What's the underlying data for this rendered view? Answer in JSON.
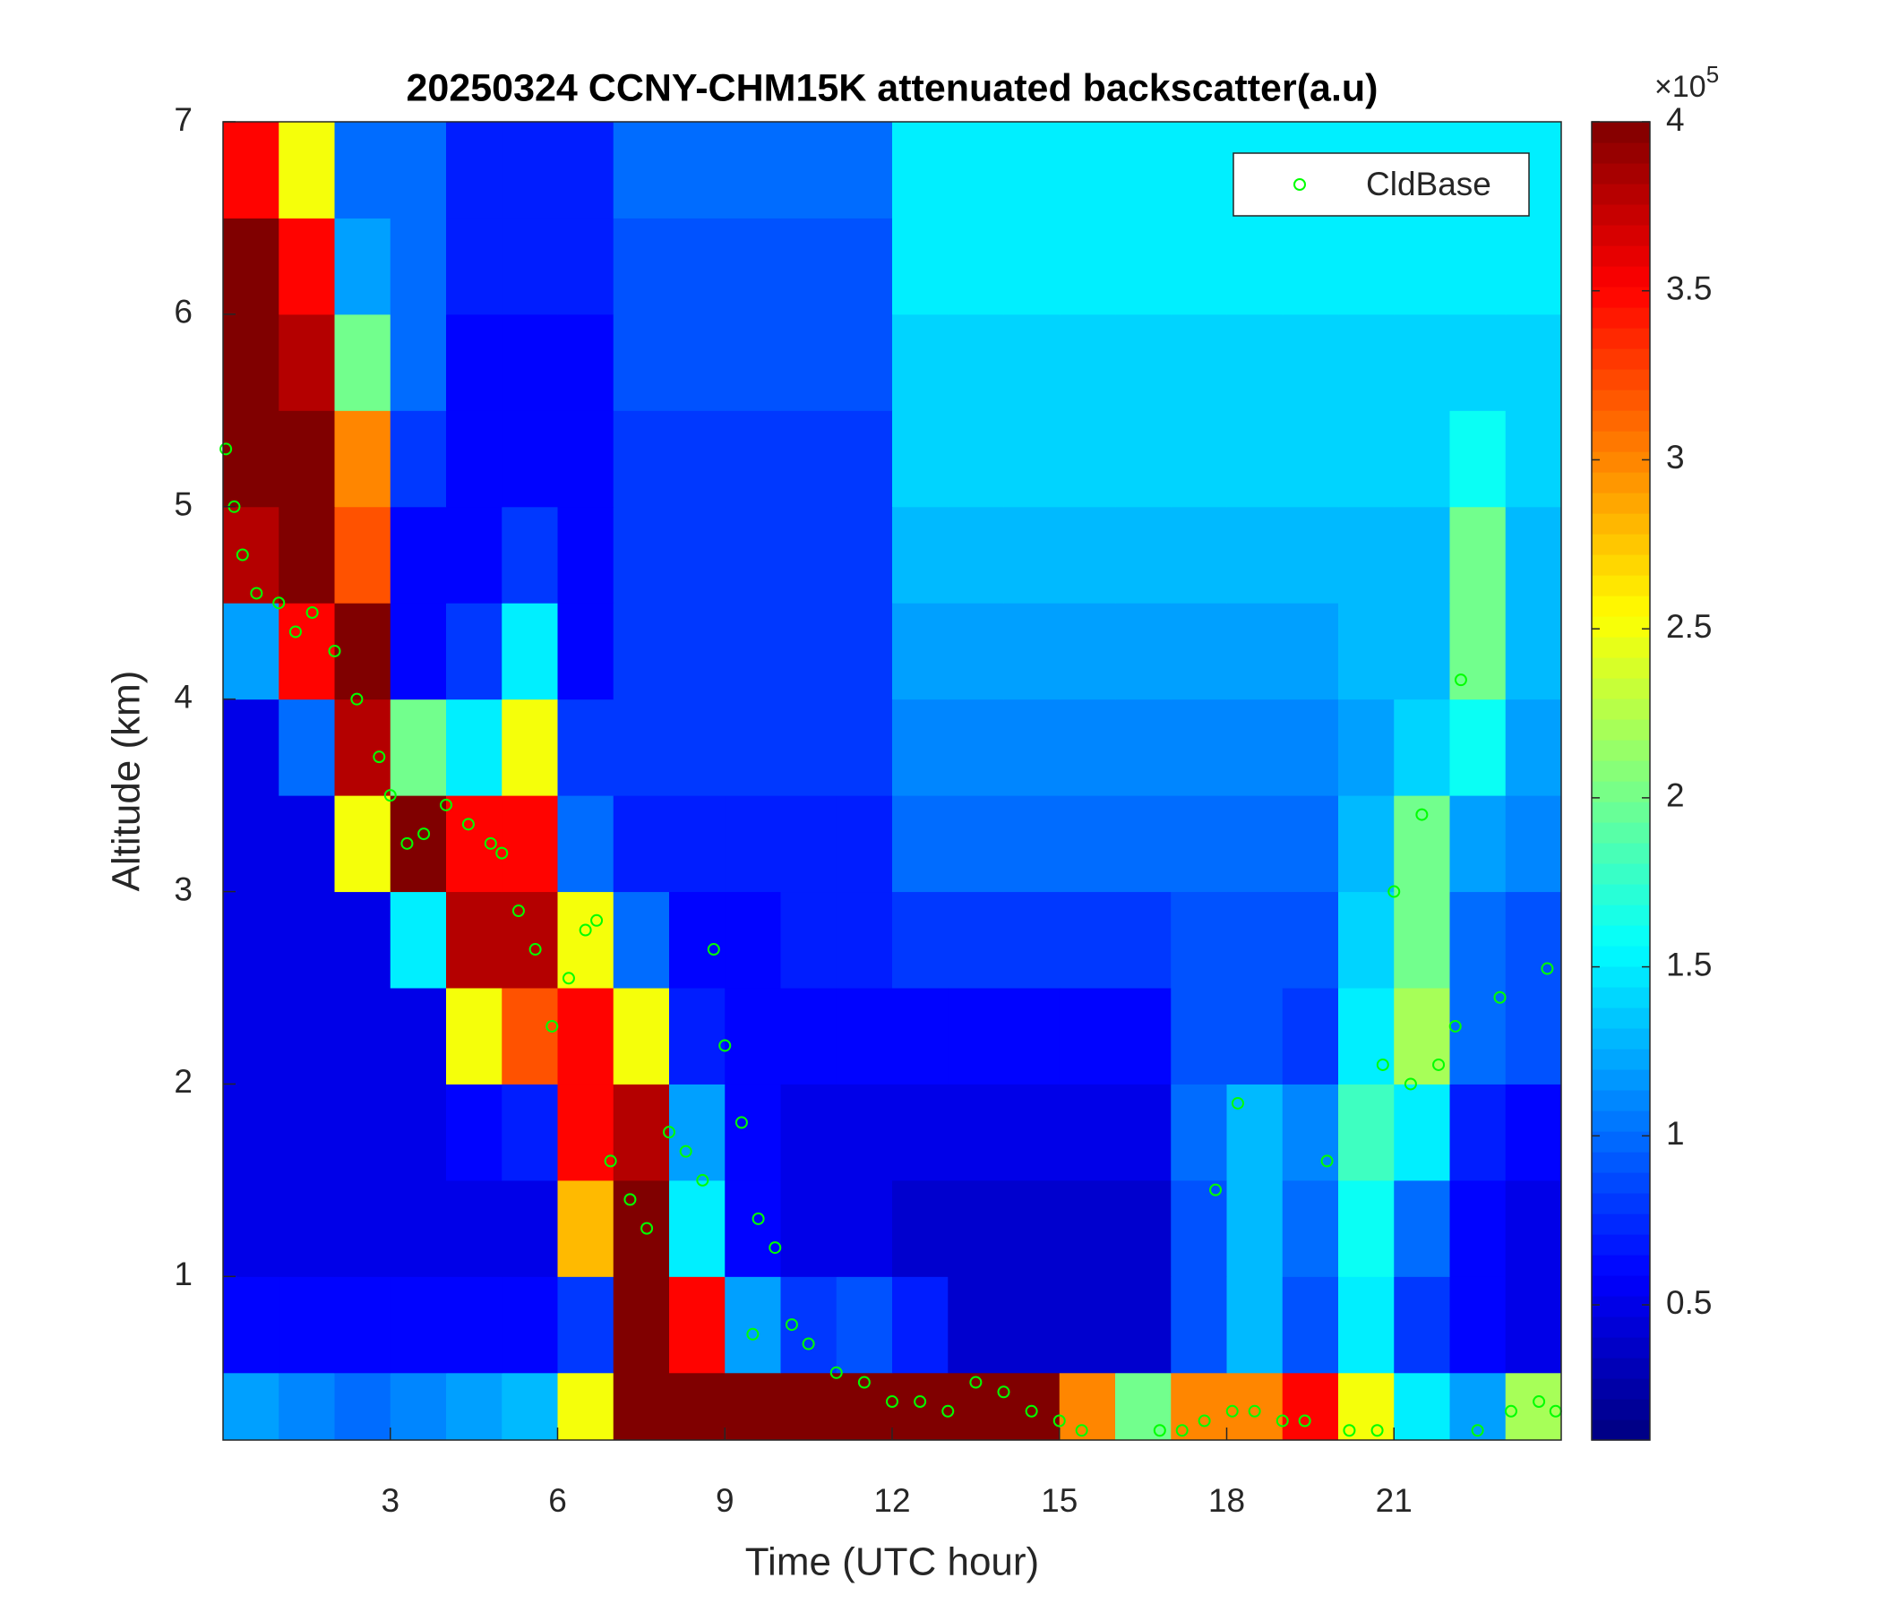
{
  "chart_data": {
    "type": "heatmap",
    "title": "20250324 CCNY-CHM15K attenuated backscatter(a.u)",
    "x_label": "Time (UTC hour)",
    "y_label": "Altitude (km)",
    "xlim": [
      0,
      24
    ],
    "ylim": [
      0.15,
      7
    ],
    "xticks": [
      3,
      6,
      9,
      12,
      15,
      18,
      21
    ],
    "yticks": [
      1,
      2,
      3,
      4,
      5,
      6,
      7
    ],
    "x_bins": [
      0,
      1,
      2,
      3,
      4,
      5,
      6,
      7,
      8,
      9,
      10,
      11,
      12,
      13,
      14,
      15,
      16,
      17,
      18,
      19,
      20,
      21,
      22,
      23,
      24
    ],
    "y_bins": [
      0.15,
      0.5,
      1,
      1.5,
      2,
      2.5,
      3,
      3.5,
      4,
      4.5,
      5,
      5.5,
      6,
      6.5,
      7
    ],
    "colormap": "jet",
    "clim": [
      0.1,
      4
    ],
    "colorbar_ticks": [
      0.5,
      1,
      1.5,
      2,
      2.5,
      3,
      3.5,
      4
    ],
    "colorbar_multiplier": {
      "base": "×10",
      "exponent": "5"
    },
    "values": [
      [
        1.2,
        1.1,
        1.0,
        1.1,
        1.2,
        1.3,
        2.5,
        4,
        4,
        4,
        4,
        4,
        4,
        4,
        4,
        3,
        2,
        3,
        3,
        3.5,
        2.5,
        1.5,
        1.2,
        2.2
      ],
      [
        0.6,
        0.6,
        0.6,
        0.6,
        0.6,
        0.6,
        0.8,
        4,
        3.5,
        1.2,
        0.8,
        0.9,
        0.7,
        0.4,
        0.4,
        0.4,
        0.4,
        0.9,
        1.3,
        0.9,
        1.5,
        0.8,
        0.6,
        0.5
      ],
      [
        0.5,
        0.5,
        0.5,
        0.5,
        0.5,
        0.5,
        2.8,
        4,
        1.5,
        0.6,
        0.5,
        0.5,
        0.4,
        0.4,
        0.4,
        0.4,
        0.4,
        0.9,
        1.3,
        1.0,
        1.6,
        1.0,
        0.6,
        0.5
      ],
      [
        0.5,
        0.5,
        0.5,
        0.5,
        0.6,
        0.7,
        3.5,
        3.8,
        1.2,
        0.6,
        0.5,
        0.5,
        0.5,
        0.5,
        0.5,
        0.5,
        0.5,
        1.0,
        1.3,
        1.1,
        1.8,
        1.5,
        0.7,
        0.6
      ],
      [
        0.5,
        0.5,
        0.5,
        0.5,
        2.5,
        3.2,
        3.5,
        2.5,
        0.7,
        0.6,
        0.6,
        0.6,
        0.6,
        0.6,
        0.6,
        0.6,
        0.6,
        0.9,
        0.9,
        0.8,
        1.5,
        2.2,
        1.0,
        0.9
      ],
      [
        0.5,
        0.5,
        0.5,
        1.5,
        3.8,
        3.8,
        2.5,
        1.0,
        0.6,
        0.6,
        0.7,
        0.7,
        0.8,
        0.8,
        0.8,
        0.8,
        0.8,
        0.9,
        0.9,
        0.9,
        1.4,
        2.0,
        1.0,
        0.9
      ],
      [
        0.5,
        0.5,
        2.5,
        4,
        3.5,
        3.5,
        1.0,
        0.7,
        0.7,
        0.7,
        0.7,
        0.7,
        1.0,
        1.0,
        1.0,
        1.0,
        1.0,
        1.0,
        1.0,
        1.0,
        1.3,
        2.0,
        1.2,
        1.1
      ],
      [
        0.5,
        1.0,
        3.8,
        2.0,
        1.5,
        2.5,
        0.8,
        0.8,
        0.8,
        0.8,
        0.8,
        0.8,
        1.1,
        1.1,
        1.1,
        1.1,
        1.1,
        1.1,
        1.1,
        1.1,
        1.2,
        1.4,
        1.6,
        1.2
      ],
      [
        1.2,
        3.5,
        4,
        0.6,
        0.8,
        1.5,
        0.6,
        0.8,
        0.8,
        0.8,
        0.8,
        0.8,
        1.2,
        1.2,
        1.2,
        1.2,
        1.2,
        1.2,
        1.2,
        1.2,
        1.3,
        1.3,
        2.0,
        1.3
      ],
      [
        3.8,
        4,
        3.2,
        0.6,
        0.6,
        0.8,
        0.6,
        0.8,
        0.8,
        0.8,
        0.8,
        0.8,
        1.3,
        1.3,
        1.3,
        1.3,
        1.3,
        1.3,
        1.3,
        1.3,
        1.3,
        1.3,
        2.0,
        1.3
      ],
      [
        4,
        4,
        3.0,
        0.8,
        0.6,
        0.6,
        0.6,
        0.8,
        0.8,
        0.8,
        0.8,
        0.8,
        1.4,
        1.4,
        1.4,
        1.4,
        1.4,
        1.4,
        1.4,
        1.4,
        1.4,
        1.4,
        1.6,
        1.4
      ],
      [
        4,
        3.8,
        2.0,
        1.0,
        0.6,
        0.6,
        0.6,
        0.9,
        0.9,
        0.9,
        0.9,
        0.9,
        1.4,
        1.4,
        1.4,
        1.4,
        1.4,
        1.4,
        1.4,
        1.4,
        1.4,
        1.4,
        1.4,
        1.4
      ],
      [
        4,
        3.5,
        1.2,
        1.0,
        0.7,
        0.7,
        0.7,
        0.9,
        0.9,
        0.9,
        0.9,
        0.9,
        1.5,
        1.5,
        1.5,
        1.5,
        1.5,
        1.5,
        1.5,
        1.5,
        1.5,
        1.5,
        1.5,
        1.5
      ],
      [
        3.5,
        2.5,
        1.0,
        1.0,
        0.7,
        0.7,
        0.7,
        1.0,
        1.0,
        1.0,
        1.0,
        1.0,
        1.5,
        1.5,
        1.5,
        1.5,
        1.5,
        1.5,
        1.5,
        1.5,
        1.5,
        1.5,
        1.5,
        1.5
      ]
    ],
    "series": [
      {
        "name": "CldBase",
        "type": "scatter",
        "color": "#00ff00",
        "x": [
          0.05,
          0.2,
          0.35,
          0.6,
          1.0,
          1.3,
          1.6,
          2.0,
          2.4,
          2.8,
          3.0,
          3.3,
          3.6,
          4.0,
          4.4,
          4.8,
          5.0,
          5.3,
          5.6,
          5.9,
          6.2,
          6.5,
          6.7,
          6.95,
          7.3,
          7.6,
          8.0,
          8.3,
          8.6,
          8.8,
          9.0,
          9.3,
          9.6,
          9.5,
          9.9,
          10.2,
          10.5,
          11.0,
          11.5,
          12.0,
          12.5,
          13.0,
          13.5,
          14.0,
          14.5,
          15.0,
          15.4,
          16.8,
          17.2,
          17.6,
          17.8,
          18.1,
          18.2,
          18.5,
          19.0,
          19.4,
          19.8,
          20.2,
          20.7,
          20.8,
          21.0,
          21.3,
          21.5,
          21.8,
          22.1,
          22.2,
          22.5,
          22.9,
          23.1,
          23.6,
          23.9,
          23.75
        ],
        "y": [
          5.3,
          5.0,
          4.75,
          4.55,
          4.5,
          4.35,
          4.45,
          4.25,
          4.0,
          3.7,
          3.5,
          3.25,
          3.3,
          3.45,
          3.35,
          3.25,
          3.2,
          2.9,
          2.7,
          2.3,
          2.55,
          2.8,
          2.85,
          1.6,
          1.4,
          1.25,
          1.75,
          1.65,
          1.5,
          2.7,
          2.2,
          1.8,
          1.3,
          0.7,
          1.15,
          0.75,
          0.65,
          0.5,
          0.45,
          0.35,
          0.35,
          0.3,
          0.45,
          0.4,
          0.3,
          0.25,
          0.2,
          0.2,
          0.2,
          0.25,
          1.45,
          0.3,
          1.9,
          0.3,
          0.25,
          0.25,
          1.6,
          0.2,
          0.2,
          2.1,
          3.0,
          2.0,
          3.4,
          2.1,
          2.3,
          4.1,
          0.2,
          2.45,
          0.3,
          0.35,
          0.3,
          2.6
        ]
      }
    ],
    "legend": "upper right"
  }
}
